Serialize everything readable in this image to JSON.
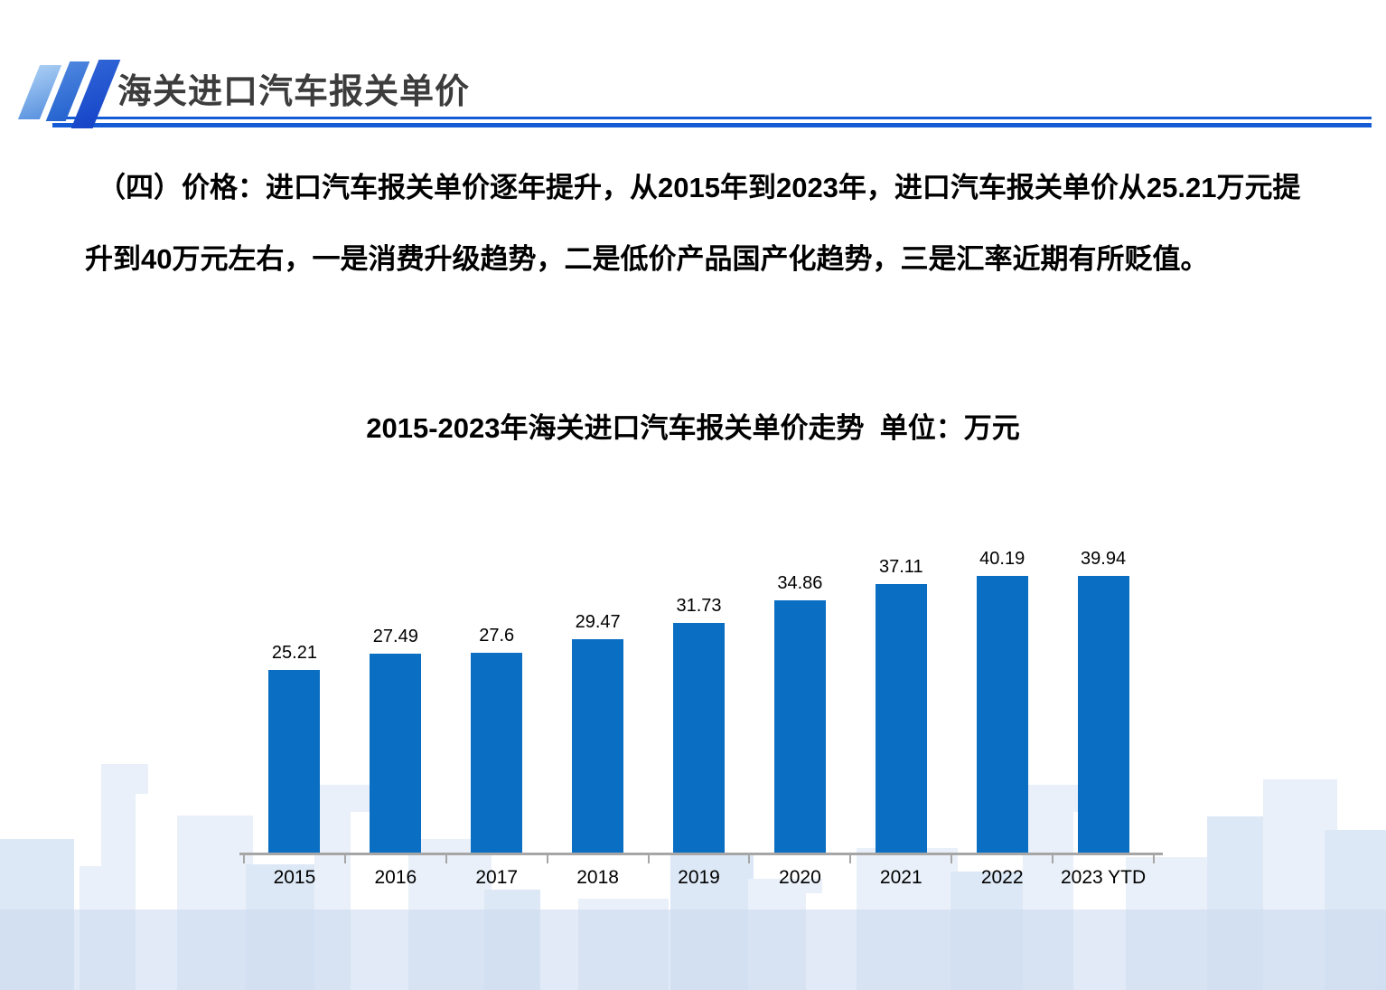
{
  "header": {
    "title": "海关进口汽车报关单价",
    "title_color": "#3c3c3c",
    "accent_line_color": "#155bd5",
    "logo_slash_colors": [
      "#8fbcec",
      "#3a76d8",
      "#1b4ed2"
    ]
  },
  "paragraph": {
    "lines": [
      "（四）价格：进口汽车报关单价逐年提升，从2015年到2023年，进口汽车报关单价从25.21万元提",
      "升到40万元左右，一是消费升级趋势，二是低价产品国产化趋势，三是汇率近期有所贬值。"
    ],
    "color": "#000000"
  },
  "chart_data": {
    "type": "bar",
    "title": "2015-2023年海关进口汽车报关单价走势  单位：万元",
    "categories": [
      "2015",
      "2016",
      "2017",
      "2018",
      "2019",
      "2020",
      "2021",
      "2022",
      "2023 YTD"
    ],
    "values": [
      25.21,
      27.49,
      27.6,
      29.47,
      31.73,
      34.86,
      37.11,
      40.19,
      39.94
    ],
    "data_labels": true,
    "bar_color": "#0a6fc2",
    "label_color": "#000000",
    "axis_color": "#a6a6a6",
    "ylim": [
      0,
      42
    ],
    "grid": false,
    "legend": "none",
    "xlabel": "",
    "ylabel": "单位：万元"
  },
  "background": {
    "skyline_colors": {
      "light": "#e9f0f9",
      "mid": "#dde8f6",
      "white": "#ffffff",
      "band": "rgba(201,216,239,0.55)"
    }
  }
}
